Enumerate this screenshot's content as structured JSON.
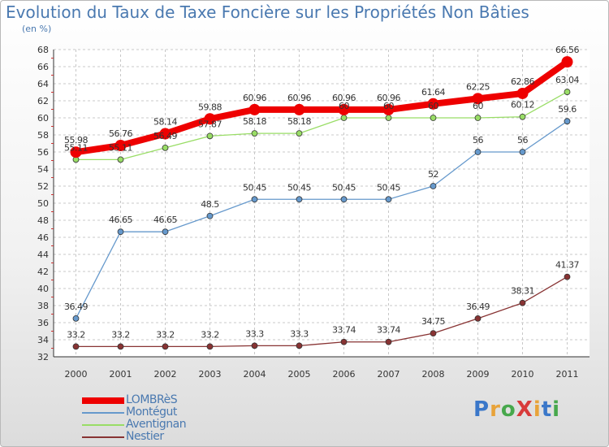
{
  "title": "Evolution du Taux de Taxe Foncière sur les Propriétés Non Bâties",
  "subtitle": "(en %)",
  "brand": {
    "text": "ProXiti",
    "letter_colors": [
      "#3a77c9",
      "#e8a33a",
      "#47a84c",
      "#d83a3a",
      "#e8a33a",
      "#3a77c9",
      "#47a84c"
    ]
  },
  "chart_data": {
    "type": "line",
    "title": "Evolution du Taux de Taxe Foncière sur les Propriétés Non Bâties",
    "ylabel": "(en %)",
    "categories": [
      "2000",
      "2001",
      "2002",
      "2003",
      "2004",
      "2005",
      "2006",
      "2007",
      "2008",
      "2009",
      "2010",
      "2011"
    ],
    "ylim": [
      32,
      68
    ],
    "yticks": [
      "32",
      "34",
      "36",
      "38",
      "40",
      "42",
      "44",
      "46",
      "48",
      "50",
      "52",
      "54",
      "56",
      "58",
      "60",
      "62",
      "64",
      "66",
      "68"
    ],
    "grid": true,
    "legend_position": "bottom-left",
    "series": [
      {
        "name": "LOMBRèS",
        "color": "#ee0000",
        "values": [
          55.98,
          56.76,
          58.14,
          59.88,
          60.96,
          60.96,
          60.96,
          60.96,
          61.64,
          62.25,
          62.86,
          66.56
        ],
        "labels": [
          "55.98",
          "56.76",
          "58.14",
          "59.88",
          "60.96",
          "60.96",
          "60.96",
          "60.96",
          "61.64",
          "62.25",
          "62.86",
          "66.56"
        ]
      },
      {
        "name": "Montégut",
        "color": "#6699cc",
        "values": [
          36.49,
          46.65,
          46.65,
          48.5,
          50.45,
          50.45,
          50.45,
          50.45,
          52,
          56,
          56,
          59.6
        ],
        "labels": [
          "36.49",
          "46.65",
          "46.65",
          "48.5",
          "50.45",
          "50.45",
          "50.45",
          "50.45",
          "52",
          "56",
          "56",
          "59.6"
        ]
      },
      {
        "name": "Aventignan",
        "color": "#99dd66",
        "values": [
          55.11,
          55.11,
          56.49,
          57.87,
          58.18,
          58.18,
          60,
          60,
          60,
          60,
          60.12,
          63.04
        ],
        "labels": [
          "55.11",
          "55.11",
          "56.49",
          "57.87",
          "58.18",
          "58.18",
          "60",
          "60",
          "60",
          "60",
          "60.12",
          "63.04"
        ]
      },
      {
        "name": "Nestier",
        "color": "#883333",
        "values": [
          33.2,
          33.2,
          33.2,
          33.2,
          33.3,
          33.3,
          33.74,
          33.74,
          34.75,
          36.49,
          38.31,
          41.37
        ],
        "labels": [
          "33.2",
          "33.2",
          "33.2",
          "33.2",
          "33.3",
          "33.3",
          "33.74",
          "33.74",
          "34.75",
          "36.49",
          "38.31",
          "41.37"
        ]
      }
    ]
  }
}
